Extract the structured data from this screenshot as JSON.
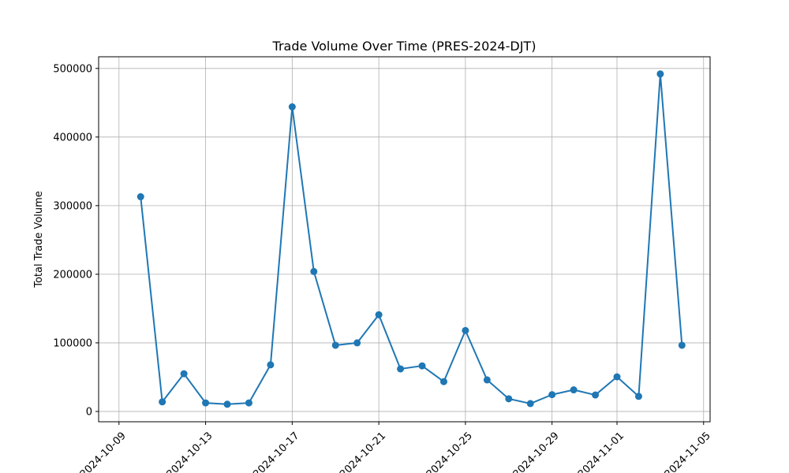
{
  "chart_data": {
    "type": "line",
    "title": "Trade Volume Over Time (PRES-2024-DJT)",
    "xlabel": "",
    "ylabel": "Total Trade Volume",
    "grid": true,
    "marker": "circle",
    "line_color": "#1f77b4",
    "xlim": [
      "2024-10-09",
      "2024-11-05"
    ],
    "ylim": [
      0,
      500000
    ],
    "x_ticks": [
      "2024-10-09",
      "2024-10-13",
      "2024-10-17",
      "2024-10-21",
      "2024-10-25",
      "2024-10-29",
      "2024-11-01",
      "2024-11-05"
    ],
    "y_ticks": [
      "0",
      "100000",
      "200000",
      "300000",
      "400000",
      "500000"
    ],
    "series": [
      {
        "x": [
          "2024-10-10",
          "2024-10-11",
          "2024-10-12",
          "2024-10-13",
          "2024-10-14",
          "2024-10-15",
          "2024-10-16",
          "2024-10-17",
          "2024-10-18",
          "2024-10-19",
          "2024-10-20",
          "2024-10-21",
          "2024-10-22",
          "2024-10-23",
          "2024-10-24",
          "2024-10-25",
          "2024-10-26",
          "2024-10-27",
          "2024-10-28",
          "2024-10-29",
          "2024-10-30",
          "2024-10-31",
          "2024-11-01",
          "2024-11-02",
          "2024-11-03",
          "2024-11-04"
        ],
        "values": [
          313000,
          14000,
          55000,
          12500,
          10500,
          12500,
          68000,
          444000,
          204000,
          96500,
          100000,
          141000,
          62000,
          66500,
          43500,
          118000,
          46000,
          18500,
          11500,
          24500,
          31500,
          24000,
          50500,
          22000,
          492000,
          96500
        ]
      }
    ]
  }
}
